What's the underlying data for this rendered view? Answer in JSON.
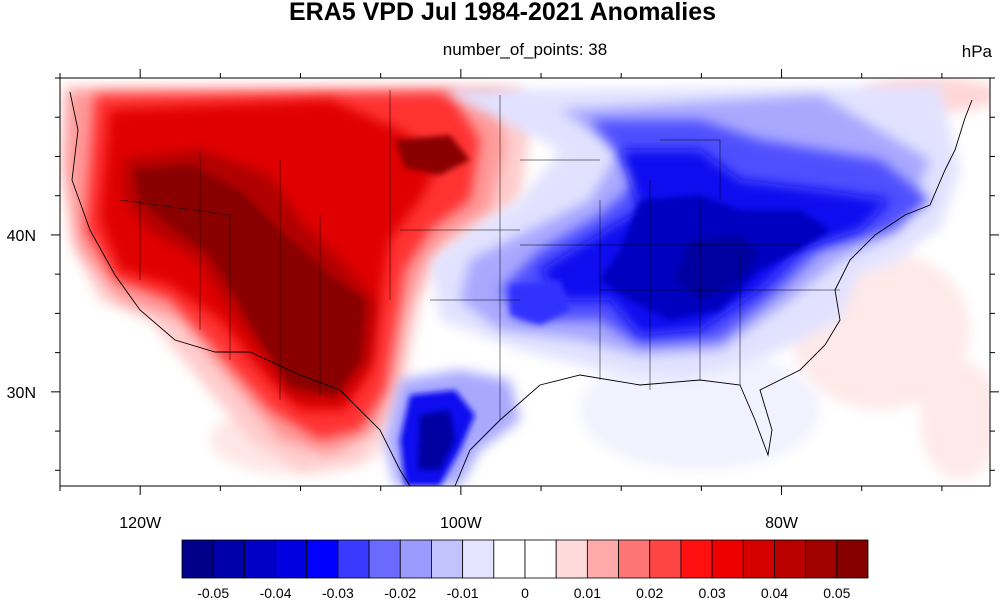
{
  "title": "ERA5 VPD Jul 1984-2021 Anomalies",
  "subtitle": "number_of_points: 38",
  "units": "hPa",
  "map": {
    "region": "Contiguous United States",
    "lon_range": [
      -125,
      -67
    ],
    "lat_range": [
      24,
      50
    ],
    "x_ticks": [
      {
        "lon": -120,
        "label": "120W"
      },
      {
        "lon": -100,
        "label": "100W"
      },
      {
        "lon": -80,
        "label": "80W"
      }
    ],
    "y_ticks": [
      {
        "lat": 40,
        "label": "40N"
      },
      {
        "lat": 30,
        "label": "30N"
      }
    ],
    "anomaly_features": [
      {
        "name": "western-dry-anomaly",
        "sign": "positive",
        "max": 0.055
      },
      {
        "name": "eastern-moist-anomaly",
        "sign": "negative",
        "min": -0.05
      },
      {
        "name": "south-texas-moist-anomaly",
        "sign": "negative",
        "min": -0.055
      }
    ]
  },
  "colorbar": {
    "labels": [
      "-0.05",
      "-0.04",
      "-0.03",
      "-0.02",
      "-0.01",
      "0",
      "0.01",
      "0.02",
      "0.03",
      "0.04",
      "0.05"
    ],
    "colors": [
      "#00008a",
      "#0000a8",
      "#0000c6",
      "#0000e0",
      "#0000ff",
      "#3a3aff",
      "#6a6aff",
      "#9a9aff",
      "#c2c2ff",
      "#e4e4ff",
      "#ffffff",
      "#ffffff",
      "#ffdada",
      "#ffaaaa",
      "#ff7575",
      "#ff4444",
      "#ff1010",
      "#ee0000",
      "#d50000",
      "#bb0000",
      "#a00000",
      "#850000"
    ]
  }
}
